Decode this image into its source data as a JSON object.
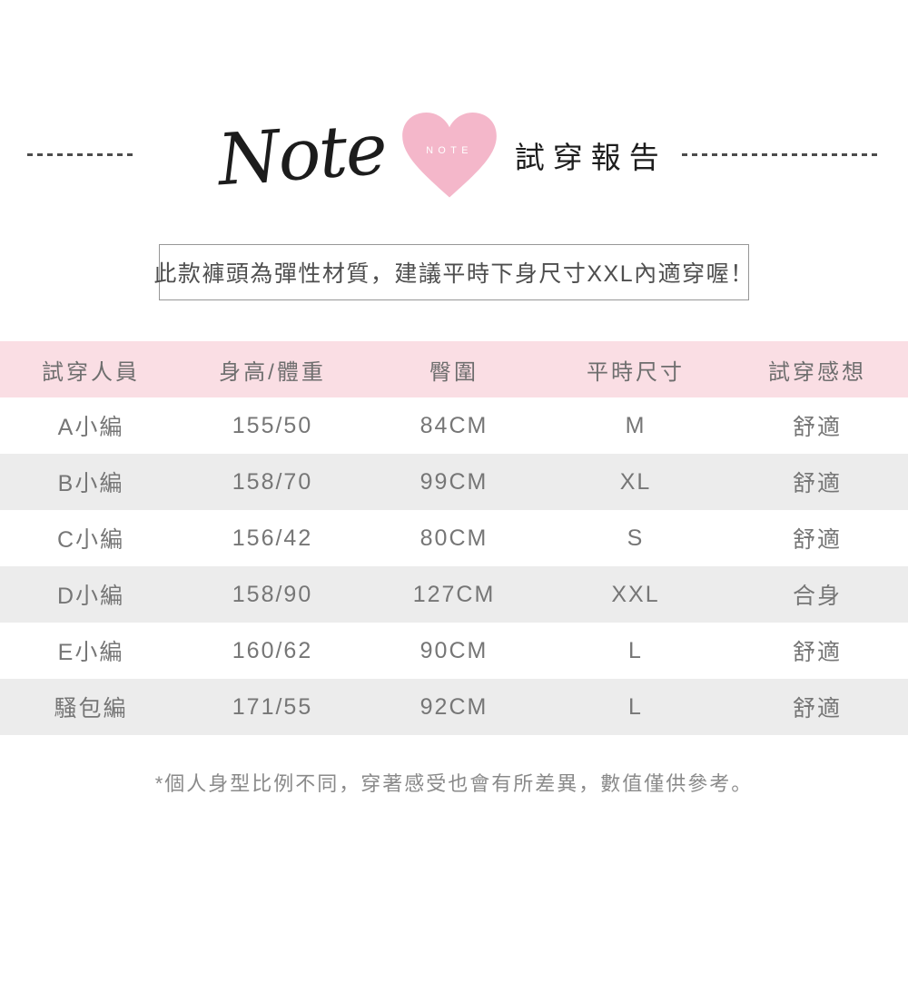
{
  "header": {
    "script_title": "Note",
    "heart_label": "NOTE",
    "title": "試穿報告",
    "heart_color": "#f4b7ca"
  },
  "notice": {
    "text": "此款褲頭為彈性材質，建議平時下身尺寸XXL內適穿喔！"
  },
  "table": {
    "columns": [
      "試穿人員",
      "身高/體重",
      "臀圍",
      "平時尺寸",
      "試穿感想"
    ],
    "rows": [
      [
        "A小編",
        "155/50",
        "84CM",
        "M",
        "舒適"
      ],
      [
        "B小編",
        "158/70",
        "99CM",
        "XL",
        "舒適"
      ],
      [
        "C小編",
        "156/42",
        "80CM",
        "S",
        "舒適"
      ],
      [
        "D小編",
        "158/90",
        "127CM",
        "XXL",
        "合身"
      ],
      [
        "E小編",
        "160/62",
        "90CM",
        "L",
        "舒適"
      ],
      [
        "騷包編",
        "171/55",
        "92CM",
        "L",
        "舒適"
      ]
    ],
    "header_bg": "#fadee4",
    "stripe_bg": "#ececec"
  },
  "footnote": "*個人身型比例不同，穿著感受也會有所差異，數值僅供參考。"
}
